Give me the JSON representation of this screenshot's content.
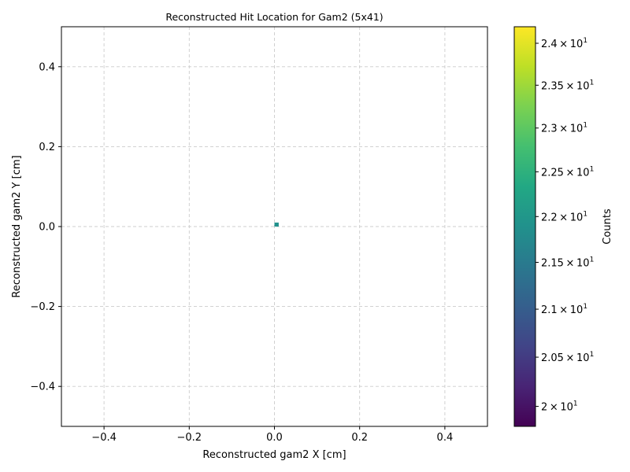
{
  "chart_data": {
    "type": "heatmap",
    "title": "Reconstructed Hit Location for Gam2 (5x41)",
    "xlabel": "Reconstructed gam2 X [cm]",
    "ylabel": "Reconstructed gam2 Y [cm]",
    "xlim": [
      -0.5,
      0.5
    ],
    "ylim": [
      -0.5,
      0.5
    ],
    "xticks": [
      -0.4,
      -0.2,
      0.0,
      0.2,
      0.4
    ],
    "yticks": [
      -0.4,
      -0.2,
      0.0,
      0.2,
      0.4
    ],
    "xtick_labels": [
      "−0.4",
      "−0.2",
      "0.0",
      "0.2",
      "0.4"
    ],
    "ytick_labels": [
      "−0.4",
      "−0.2",
      "0.0",
      "0.2",
      "0.4"
    ],
    "grid": true,
    "colormap": "viridis",
    "color_scale": "log",
    "colorbar": {
      "label": "Counts",
      "range": [
        19.8,
        24.2
      ],
      "ticks": [
        20,
        20.5,
        21,
        21.5,
        22,
        22.5,
        23,
        23.5,
        24
      ],
      "tick_mantissas": [
        "2",
        "2.05",
        "2.1",
        "2.15",
        "2.2",
        "2.25",
        "2.3",
        "2.35",
        "2.4"
      ],
      "tick_base": "10",
      "tick_exponent": "1",
      "tick_times": "×"
    },
    "bins": [
      {
        "x": [
          0.0,
          0.01
        ],
        "y": [
          0.0,
          0.01
        ],
        "count": 22
      }
    ]
  }
}
